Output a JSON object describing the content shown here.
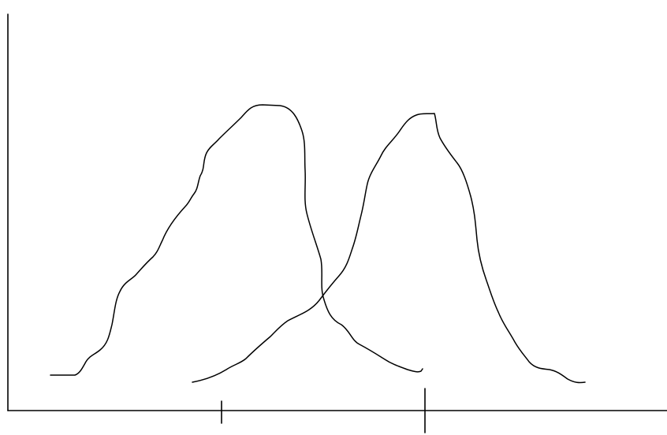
{
  "diagram": {
    "description_visible_text": [],
    "colors": {
      "background": "#ffffff",
      "stroke": "#000000"
    },
    "elements": {
      "y_axis": {
        "label": ""
      },
      "x_axis": {
        "label": ""
      },
      "ticks": [
        {
          "name": "tick-left",
          "label": ""
        },
        {
          "name": "tick-right",
          "label": ""
        }
      ],
      "curves": [
        {
          "name": "left-distribution-curve"
        },
        {
          "name": "right-distribution-curve"
        }
      ]
    }
  }
}
